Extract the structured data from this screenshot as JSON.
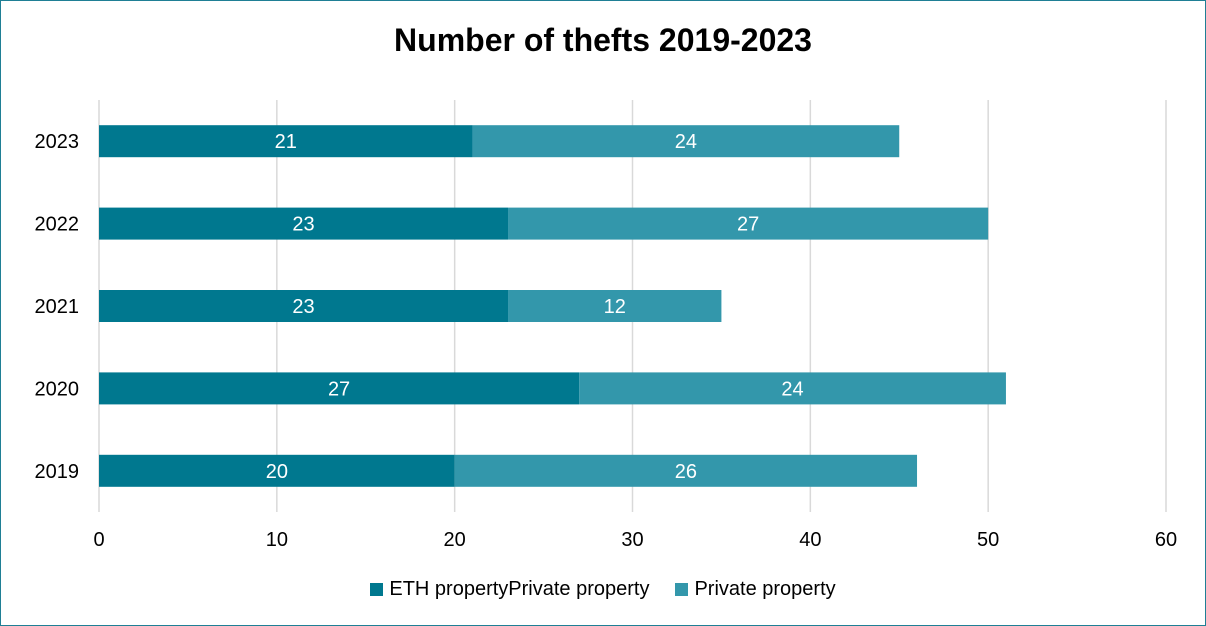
{
  "chart_data": {
    "type": "bar",
    "orientation": "horizontal",
    "stacked": true,
    "title": "Number of thefts 2019-2023",
    "categories": [
      "2023",
      "2022",
      "2021",
      "2020",
      "2019"
    ],
    "series": [
      {
        "name": "ETH propertyPrivate property",
        "color": "#00788f",
        "values": [
          21,
          23,
          23,
          27,
          20
        ]
      },
      {
        "name": "Private property",
        "color": "#3397ab",
        "values": [
          24,
          27,
          12,
          24,
          26
        ]
      }
    ],
    "xlim": [
      0,
      60
    ],
    "xticks": [
      "0",
      "10",
      "20",
      "30",
      "40",
      "50",
      "60"
    ],
    "grid": true,
    "legend_position": "bottom"
  }
}
